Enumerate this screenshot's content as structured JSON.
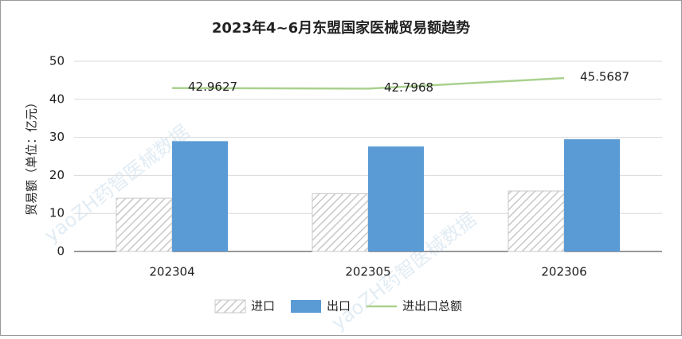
{
  "chart_data": {
    "type": "bar",
    "title": "2023年4~6月东盟国家医械贸易额趋势",
    "y_label": "贸易额（单位：亿元）",
    "watermark": "yaoZH药智医械数据",
    "categories": [
      "202304",
      "202305",
      "202306"
    ],
    "series": [
      {
        "name": "进口",
        "type": "bar",
        "pattern": "hatch",
        "color": "#bfbfbf",
        "values": [
          14,
          15.2,
          15.9
        ]
      },
      {
        "name": "出口",
        "type": "bar",
        "color": "#5b9bd5",
        "values": [
          29,
          27.6,
          29.5
        ]
      },
      {
        "name": "进出口总额",
        "type": "line",
        "color": "#a9d18e",
        "values": [
          42.9627,
          42.7968,
          45.5687
        ],
        "value_labels": [
          "42.9627",
          "42.7968",
          "45.5687"
        ]
      }
    ],
    "ylim": [
      0,
      50
    ],
    "yticks": [
      0,
      10,
      20,
      30,
      40,
      50
    ],
    "grid": true,
    "legend": "bottom"
  }
}
